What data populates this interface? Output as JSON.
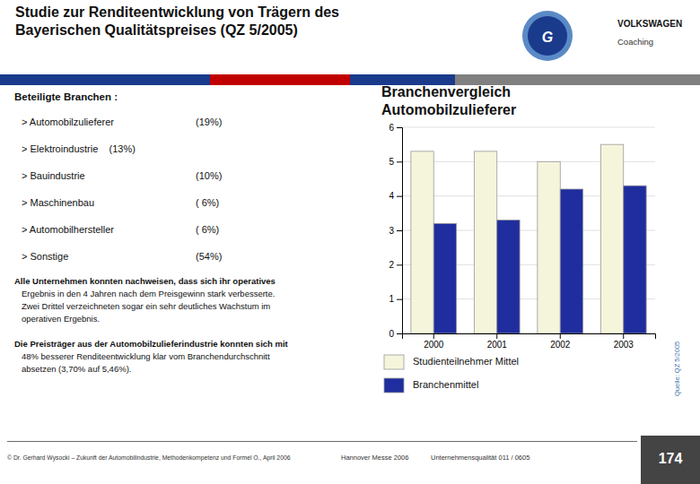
{
  "chart_data": {
    "type": "bar",
    "title": "Branchenvergleich",
    "subtitle": "Automobilzulieferer",
    "categories": [
      "2000",
      "2001",
      "2002",
      "2003"
    ],
    "series": [
      {
        "name": "Studienteilnehmer Mittel",
        "color": "#F5F5DC",
        "values": [
          5.3,
          5.3,
          5.0,
          5.5
        ]
      },
      {
        "name": "Branchenmittel",
        "color": "#1F2D9E",
        "values": [
          3.2,
          3.3,
          4.2,
          4.3
        ]
      }
    ],
    "ylim": [
      0,
      6
    ],
    "yticks": [
      0,
      1,
      2,
      3,
      4,
      5,
      6
    ],
    "grid": true,
    "legend": "bottom",
    "annotations": [
      "Studie zur Renditeentwicklung von Trägern des\nBayerischen Qualitätspreises (QZ 5/2005)",
      "G",
      "VOLKSWAGEN",
      "Coaching",
      "Beteiligte Branchen :",
      "> Automobilzulieferer",
      "(19%)",
      "> Elektroindustrie    (13%)",
      "> Bauindustrie",
      "(10%)",
      "> Maschinenbau",
      "( 6%)",
      "> Automobilhersteller",
      "( 6%)",
      "> Sonstige",
      "(54%)",
      "Alle Unternehmen konnten nachweisen, dass sich ihr operatives",
      "   Ergebnis in den 4 Jahren nach dem Preisgewinn stark verbesserte.\n   Zwei Drittel verzeichneten sogar ein sehr deutliches Wachstum im\n   operativen Ergebnis.",
      "Die Preisträger aus der Automobilzulieferindustrie konnten sich mit",
      "   48% besserer Renditeentwicklung klar vom Branchendurchschnitt\n   absetzen (3,70% auf 5,46%).",
      "Quelle: QZ 5/2005",
      "© Dr. Gerhard Wysocki – Zukunft der Automobilindustrie, Methodenkompetenz und Formel O., April 2006",
      "Hannover Messe 2006",
      "Unternehmensqualität 011 / 0605",
      "174"
    ]
  }
}
